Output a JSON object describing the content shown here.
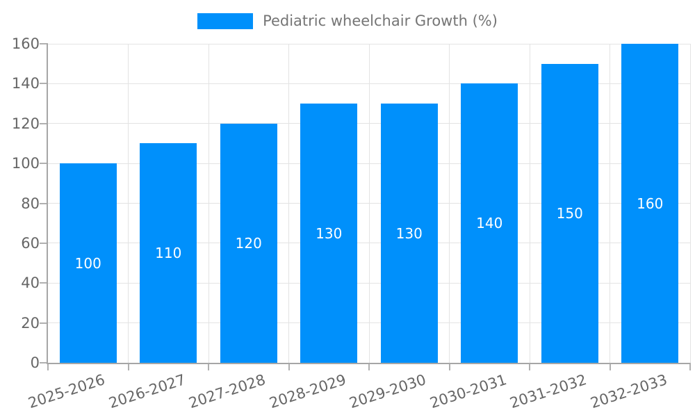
{
  "chart_data": {
    "type": "bar",
    "title": "Pediatric wheelchair Growth (%)",
    "categories": [
      "2025-2026",
      "2026-2027",
      "2027-2028",
      "2028-2029",
      "2029-2030",
      "2030-2031",
      "2031-2032",
      "2032-2033"
    ],
    "values": [
      100,
      110,
      120,
      130,
      130,
      140,
      150,
      160
    ],
    "value_labels": [
      "100",
      "110",
      "120",
      "130",
      "130",
      "140",
      "150",
      "160"
    ],
    "xlabel": "",
    "ylabel": "",
    "ylim": [
      0,
      160
    ],
    "yticks": [
      0,
      20,
      40,
      60,
      80,
      100,
      120,
      140,
      160
    ],
    "grid": true,
    "legend_position": "top",
    "colors": {
      "bar": "#0090fb",
      "grid": "#e3e3e3",
      "axis_line": "#a6a6a6",
      "tick_mark": "#b0b0b0",
      "tick_label": "#666666",
      "legend_text": "#757575",
      "value_label": "#ffffff",
      "background": "#ffffff"
    }
  }
}
